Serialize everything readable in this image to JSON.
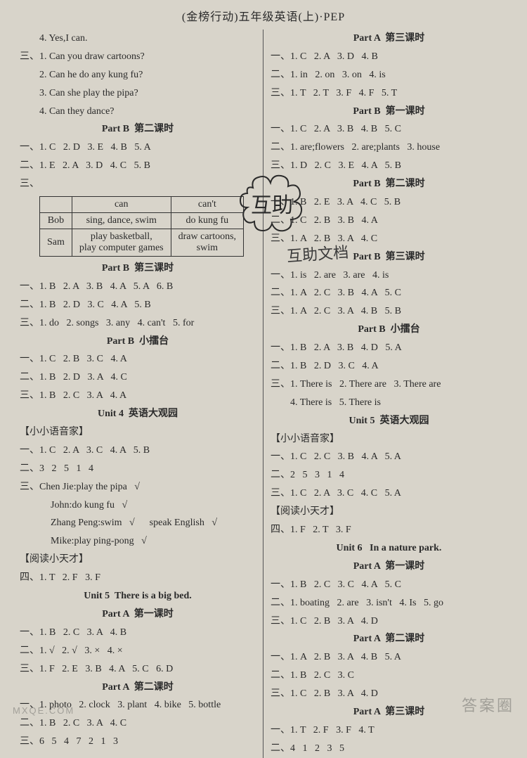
{
  "header": "(金榜行动)五年级英语(上)·PEP",
  "left": [
    {
      "c": "in1",
      "t": "4. Yes,I can."
    },
    {
      "c": "",
      "t": "三、1. Can you draw cartoons?"
    },
    {
      "c": "in1",
      "t": "2. Can he do any kung fu?"
    },
    {
      "c": "in1",
      "t": "3. Can she play the pipa?"
    },
    {
      "c": "in1",
      "t": "4. Can they dance?"
    },
    {
      "c": "center bold",
      "t": "Part B  第二课时"
    },
    {
      "c": "",
      "t": "一、1. C   2. D   3. E   4. B   5. A"
    },
    {
      "c": "",
      "t": "二、1. E   2. A   3. D   4. C   5. B"
    },
    {
      "c": "",
      "t": "三、"
    },
    {
      "type": "table"
    },
    {
      "c": "center bold",
      "t": "Part B  第三课时"
    },
    {
      "c": "",
      "t": "一、1. B   2. A   3. B   4. A   5. A   6. B"
    },
    {
      "c": "",
      "t": "二、1. B   2. D   3. C   4. A   5. B"
    },
    {
      "c": "",
      "t": "三、1. do   2. songs   3. any   4. can't   5. for"
    },
    {
      "c": "center bold",
      "t": "Part B  小擂台"
    },
    {
      "c": "",
      "t": "一、1. C   2. B   3. C   4. A"
    },
    {
      "c": "",
      "t": "二、1. B   2. D   3. A   4. C"
    },
    {
      "c": "",
      "t": "三、1. B   2. C   3. A   4. A"
    },
    {
      "c": "center bold",
      "t": "Unit 4  英语大观园"
    },
    {
      "c": "",
      "t": "【小小语音家】"
    },
    {
      "c": "",
      "t": "一、1. C   2. A   3. C   4. A   5. B"
    },
    {
      "c": "",
      "t": "二、3   2   5   1   4"
    },
    {
      "c": "",
      "t": "三、Chen Jie:play the pipa   √"
    },
    {
      "c": "in2",
      "t": "John:do kung fu   √"
    },
    {
      "c": "in2",
      "t": "Zhang Peng:swim   √      speak English   √"
    },
    {
      "c": "in2",
      "t": "Mike:play ping-pong   √"
    },
    {
      "c": "",
      "t": "【阅读小天才】"
    },
    {
      "c": "",
      "t": "四、1. T   2. F   3. F"
    },
    {
      "c": "center bold",
      "t": "Unit 5  There is a big bed."
    },
    {
      "c": "center bold",
      "t": "Part A  第一课时"
    },
    {
      "c": "",
      "t": "一、1. B   2. C   3. A   4. B"
    },
    {
      "c": "",
      "t": "二、1. √   2. √   3. ×   4. ×"
    },
    {
      "c": "",
      "t": "三、1. F   2. E   3. B   4. A   5. C   6. D"
    },
    {
      "c": "center bold",
      "t": "Part A  第二课时"
    },
    {
      "c": "",
      "t": "一、1. photo   2. clock   3. plant   4. bike   5. bottle"
    },
    {
      "c": "",
      "t": "二、1. B   2. C   3. A   4. C"
    },
    {
      "c": "",
      "t": "三、6   5   4   7   2   1   3"
    }
  ],
  "table": {
    "head": [
      "",
      "can",
      "can't"
    ],
    "rows": [
      [
        "Bob",
        "sing,   dance,   swim",
        "do kung fu"
      ],
      [
        "Sam",
        "play basketball,\nplay computer games",
        "draw cartoons,\nswim"
      ]
    ]
  },
  "right": [
    {
      "c": "center bold",
      "t": "Part A  第三课时"
    },
    {
      "c": "",
      "t": "一、1. C   2. A   3. D   4. B"
    },
    {
      "c": "",
      "t": "二、1. in   2. on   3. on   4. is"
    },
    {
      "c": "",
      "t": "三、1. T   2. T   3. F   4. F   5. T"
    },
    {
      "c": "center bold",
      "t": "Part B  第一课时"
    },
    {
      "c": "",
      "t": "一、1. C   2. A   3. B   4. B   5. C"
    },
    {
      "c": "",
      "t": "二、1. are;flowers   2. are;plants   3. house"
    },
    {
      "c": "",
      "t": "三、1. D   2. C   3. E   4. A   5. B"
    },
    {
      "c": "center bold",
      "t": "Part B  第二课时"
    },
    {
      "c": "",
      "t": "一、1. B   2. E   3. A   4. C   5. B"
    },
    {
      "c": "",
      "t": "二、1. C   2. B   3. B   4. A"
    },
    {
      "c": "",
      "t": "三、1. A   2. B   3. A   4. C"
    },
    {
      "c": "center bold",
      "t": "Part B  第三课时"
    },
    {
      "c": "",
      "t": "一、1. is   2. are   3. are   4. is"
    },
    {
      "c": "",
      "t": "二、1. A   2. C   3. B   4. A   5. C"
    },
    {
      "c": "",
      "t": "三、1. A   2. C   3. A   4. B   5. B"
    },
    {
      "c": "center bold",
      "t": "Part B  小擂台"
    },
    {
      "c": "",
      "t": "一、1. B   2. A   3. B   4. D   5. A"
    },
    {
      "c": "",
      "t": "二、1. B   2. D   3. C   4. A"
    },
    {
      "c": "",
      "t": "三、1. There is   2. There are   3. There are"
    },
    {
      "c": "in1",
      "t": "4. There is   5. There is"
    },
    {
      "c": "center bold",
      "t": "Unit 5  英语大观园"
    },
    {
      "c": "",
      "t": "【小小语音家】"
    },
    {
      "c": "",
      "t": "一、1. C   2. C   3. B   4. A   5. A"
    },
    {
      "c": "",
      "t": "二、2   5   3   1   4"
    },
    {
      "c": "",
      "t": "三、1. C   2. A   3. C   4. C   5. A"
    },
    {
      "c": "",
      "t": "【阅读小天才】"
    },
    {
      "c": "",
      "t": "四、1. F   2. T   3. F"
    },
    {
      "c": "center bold",
      "t": "Unit 6   In a nature park."
    },
    {
      "c": "center bold",
      "t": "Part A  第一课时"
    },
    {
      "c": "",
      "t": "一、1. B   2. C   3. C   4. A   5. C"
    },
    {
      "c": "",
      "t": "二、1. boating   2. are   3. isn't   4. Is   5. go"
    },
    {
      "c": "",
      "t": "三、1. C   2. B   3. A   4. D"
    },
    {
      "c": "center bold",
      "t": "Part A  第二课时"
    },
    {
      "c": "",
      "t": "一、1. A   2. B   3. A   4. B   5. A"
    },
    {
      "c": "",
      "t": "二、1. B   2. C   3. C"
    },
    {
      "c": "",
      "t": "三、1. C   2. B   3. A   4. D"
    },
    {
      "c": "center bold",
      "t": "Part A  第三课时"
    },
    {
      "c": "",
      "t": "一、1. T   2. F   3. F   4. T"
    },
    {
      "c": "",
      "t": "二、4   1   2   3   5"
    }
  ],
  "stamp_text": "互助",
  "stamp2_text": "互助文档",
  "wm": "答案圈",
  "wm2": "MXQE.COM"
}
